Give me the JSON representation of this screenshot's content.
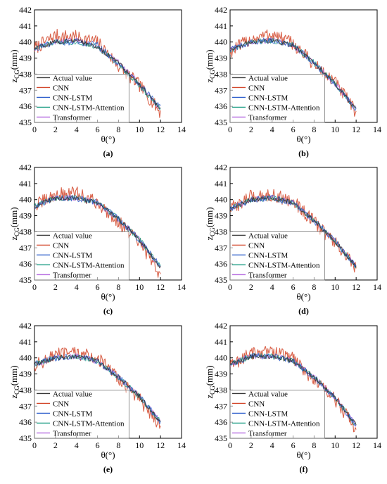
{
  "figure": {
    "xlabel": "θ(°)",
    "ylabel_main": "z",
    "ylabel_sub": "CG",
    "ylabel_unit": "(mm)",
    "series_colors": {
      "Actual value": "#333333",
      "CNN": "#d2462a",
      "CNN-LSTM": "#2f5fcc",
      "CNN-LSTM-Attention": "#1f9e86",
      "Transformer": "#b66be0"
    }
  },
  "chart_data": [
    {
      "panel": "(a)",
      "type": "line",
      "xlim": [
        0,
        14
      ],
      "ylim": [
        435,
        442
      ],
      "xticks": [
        0,
        2,
        4,
        6,
        8,
        10,
        12,
        14
      ],
      "yticks": [
        435,
        436,
        437,
        438,
        439,
        440,
        441,
        442
      ],
      "xlabel": "θ(°)",
      "ylabel": "zCG(mm)",
      "legend": [
        "Actual value",
        "CNN",
        "CNN-LSTM",
        "CNN-LSTM-Attention",
        "Transformer"
      ],
      "legend_position": "bottom-left",
      "annotation_box": {
        "x": 9,
        "y": 438
      },
      "series": [
        {
          "name": "Actual value",
          "x": [
            0,
            2,
            4,
            6,
            8,
            10,
            12
          ],
          "y": [
            439.6,
            440.0,
            440.1,
            439.7,
            438.7,
            437.4,
            435.8
          ]
        },
        {
          "name": "CNN",
          "x": [
            0,
            2,
            4,
            6,
            8,
            10,
            12
          ],
          "y": [
            439.6,
            440.4,
            440.3,
            440.0,
            438.5,
            437.3,
            435.6
          ]
        },
        {
          "name": "CNN-LSTM",
          "x": [
            0,
            2,
            4,
            6,
            8,
            10,
            12
          ],
          "y": [
            439.6,
            440.0,
            440.0,
            439.8,
            438.6,
            437.4,
            435.9
          ]
        },
        {
          "name": "CNN-LSTM-Attention",
          "x": [
            0,
            2,
            4,
            6,
            8,
            10,
            12
          ],
          "y": [
            439.6,
            440.0,
            440.0,
            439.7,
            438.6,
            437.3,
            435.8
          ]
        },
        {
          "name": "Transformer",
          "x": [
            0,
            2,
            4,
            6,
            8,
            10,
            12
          ],
          "y": [
            439.6,
            440.0,
            440.1,
            439.7,
            438.7,
            437.4,
            435.8
          ]
        }
      ]
    },
    {
      "panel": "(b)",
      "type": "line",
      "xlim": [
        0,
        14
      ],
      "ylim": [
        435,
        442
      ],
      "xticks": [
        0,
        2,
        4,
        6,
        8,
        10,
        12,
        14
      ],
      "yticks": [
        435,
        436,
        437,
        438,
        439,
        440,
        441,
        442
      ],
      "xlabel": "θ(°)",
      "ylabel": "zCG(mm)",
      "legend": [
        "Actual value",
        "CNN",
        "CNN-LSTM",
        "CNN-LSTM-Attention",
        "Transformer"
      ],
      "legend_position": "bottom-left",
      "annotation_box": {
        "x": 9,
        "y": 438
      },
      "series": [
        {
          "name": "Actual value",
          "x": [
            0,
            2,
            4,
            6,
            8,
            10,
            12
          ],
          "y": [
            439.5,
            440.0,
            440.1,
            439.8,
            438.7,
            437.4,
            435.8
          ]
        },
        {
          "name": "CNN",
          "x": [
            0,
            2,
            4,
            6,
            8,
            10,
            12
          ],
          "y": [
            439.4,
            440.2,
            440.5,
            439.9,
            438.6,
            437.5,
            435.6
          ]
        },
        {
          "name": "CNN-LSTM",
          "x": [
            0,
            2,
            4,
            6,
            8,
            10,
            12
          ],
          "y": [
            439.5,
            440.0,
            440.1,
            439.8,
            438.7,
            437.4,
            435.8
          ]
        },
        {
          "name": "CNN-LSTM-Attention",
          "x": [
            0,
            2,
            4,
            6,
            8,
            10,
            12
          ],
          "y": [
            439.5,
            440.0,
            440.1,
            439.8,
            438.7,
            437.4,
            435.8
          ]
        },
        {
          "name": "Transformer",
          "x": [
            0,
            2,
            4,
            6,
            8,
            10,
            12
          ],
          "y": [
            439.5,
            440.0,
            440.1,
            439.8,
            438.7,
            437.4,
            435.8
          ]
        }
      ]
    },
    {
      "panel": "(c)",
      "type": "line",
      "xlim": [
        0,
        14
      ],
      "ylim": [
        435,
        442
      ],
      "xticks": [
        0,
        2,
        4,
        6,
        8,
        10,
        12,
        14
      ],
      "yticks": [
        435,
        436,
        437,
        438,
        439,
        440,
        441,
        442
      ],
      "xlabel": "θ(°)",
      "ylabel": "zCG(mm)",
      "legend": [
        "Actual value",
        "CNN",
        "CNN-LSTM",
        "CNN-LSTM-Attention",
        "Transformer"
      ],
      "legend_position": "bottom-left",
      "annotation_box": {
        "x": 9,
        "y": 438
      },
      "series": [
        {
          "name": "Actual value",
          "x": [
            0,
            2,
            4,
            6,
            8,
            10,
            12
          ],
          "y": [
            439.6,
            440.1,
            440.1,
            439.8,
            438.8,
            437.5,
            435.8
          ]
        },
        {
          "name": "CNN",
          "x": [
            0,
            2,
            4,
            6,
            8,
            10,
            12
          ],
          "y": [
            439.6,
            440.3,
            440.4,
            439.8,
            438.6,
            437.3,
            435.3
          ]
        },
        {
          "name": "CNN-LSTM",
          "x": [
            0,
            2,
            4,
            6,
            8,
            10,
            12
          ],
          "y": [
            439.6,
            440.1,
            440.1,
            439.8,
            438.8,
            437.5,
            435.8
          ]
        },
        {
          "name": "CNN-LSTM-Attention",
          "x": [
            0,
            2,
            4,
            6,
            8,
            10,
            12
          ],
          "y": [
            439.6,
            440.1,
            440.1,
            439.8,
            438.8,
            437.5,
            435.8
          ]
        },
        {
          "name": "Transformer",
          "x": [
            0,
            2,
            4,
            6,
            8,
            10,
            12
          ],
          "y": [
            439.6,
            440.1,
            440.1,
            439.8,
            438.8,
            437.5,
            435.8
          ]
        }
      ]
    },
    {
      "panel": "(d)",
      "type": "line",
      "xlim": [
        0,
        14
      ],
      "ylim": [
        435,
        442
      ],
      "xticks": [
        0,
        2,
        4,
        6,
        8,
        10,
        12,
        14
      ],
      "yticks": [
        435,
        436,
        437,
        438,
        439,
        440,
        441,
        442
      ],
      "xlabel": "θ(°)",
      "ylabel": "zCG(mm)",
      "legend": [
        "Actual value",
        "CNN",
        "CNN-LSTM",
        "CNN-LSTM-Attention",
        "Transformer"
      ],
      "legend_position": "bottom-left",
      "annotation_box": {
        "x": 9,
        "y": 438
      },
      "series": [
        {
          "name": "Actual value",
          "x": [
            0,
            2,
            4,
            6,
            8,
            10,
            12
          ],
          "y": [
            439.4,
            440.0,
            440.1,
            439.8,
            438.7,
            437.4,
            435.8
          ]
        },
        {
          "name": "CNN",
          "x": [
            0,
            2,
            4,
            6,
            8,
            10,
            12
          ],
          "y": [
            439.4,
            440.2,
            440.3,
            439.9,
            438.6,
            437.3,
            435.7
          ]
        },
        {
          "name": "CNN-LSTM",
          "x": [
            0,
            2,
            4,
            6,
            8,
            10,
            12
          ],
          "y": [
            439.4,
            440.0,
            440.1,
            439.8,
            438.7,
            437.4,
            435.8
          ]
        },
        {
          "name": "CNN-LSTM-Attention",
          "x": [
            0,
            2,
            4,
            6,
            8,
            10,
            12
          ],
          "y": [
            439.4,
            440.0,
            440.1,
            439.8,
            438.7,
            437.4,
            435.8
          ]
        },
        {
          "name": "Transformer",
          "x": [
            0,
            2,
            4,
            6,
            8,
            10,
            12
          ],
          "y": [
            439.4,
            440.0,
            440.1,
            439.8,
            438.7,
            437.4,
            435.8
          ]
        }
      ]
    },
    {
      "panel": "(e)",
      "type": "line",
      "xlim": [
        0,
        14
      ],
      "ylim": [
        435,
        442
      ],
      "xticks": [
        0,
        2,
        4,
        6,
        8,
        10,
        12,
        14
      ],
      "yticks": [
        435,
        436,
        437,
        438,
        439,
        440,
        441,
        442
      ],
      "xlabel": "θ(°)",
      "ylabel": "zCG(mm)",
      "legend": [
        "Actual value",
        "CNN",
        "CNN-LSTM",
        "CNN-LSTM-Attention",
        "Transformer"
      ],
      "legend_position": "bottom-left",
      "annotation_box": {
        "x": 9,
        "y": 438
      },
      "series": [
        {
          "name": "Actual value",
          "x": [
            0,
            2,
            4,
            6,
            8,
            10,
            12
          ],
          "y": [
            439.6,
            440.0,
            440.1,
            439.8,
            438.8,
            437.6,
            436.0
          ]
        },
        {
          "name": "CNN",
          "x": [
            0,
            2,
            4,
            6,
            8,
            10,
            12
          ],
          "y": [
            439.5,
            440.2,
            440.3,
            440.0,
            438.7,
            437.4,
            435.8
          ]
        },
        {
          "name": "CNN-LSTM",
          "x": [
            0,
            2,
            4,
            6,
            8,
            10,
            12
          ],
          "y": [
            439.6,
            440.0,
            440.1,
            439.8,
            438.8,
            437.6,
            436.0
          ]
        },
        {
          "name": "CNN-LSTM-Attention",
          "x": [
            0,
            2,
            4,
            6,
            8,
            10,
            12
          ],
          "y": [
            439.6,
            440.0,
            440.1,
            439.8,
            438.8,
            437.6,
            436.0
          ]
        },
        {
          "name": "Transformer",
          "x": [
            0,
            2,
            4,
            6,
            8,
            10,
            12
          ],
          "y": [
            439.6,
            440.0,
            440.1,
            439.8,
            438.8,
            437.6,
            436.0
          ]
        }
      ]
    },
    {
      "panel": "(f)",
      "type": "line",
      "xlim": [
        0,
        14
      ],
      "ylim": [
        435,
        442
      ],
      "xticks": [
        0,
        2,
        4,
        6,
        8,
        10,
        12,
        14
      ],
      "yticks": [
        435,
        436,
        437,
        438,
        439,
        440,
        441,
        442
      ],
      "xlabel": "θ(°)",
      "ylabel": "zCG(mm)",
      "legend": [
        "Actual value",
        "CNN",
        "CNN-LSTM",
        "CNN-LSTM-Attention",
        "Transformer"
      ],
      "legend_position": "bottom-left",
      "annotation_box": {
        "x": 9,
        "y": 438
      },
      "series": [
        {
          "name": "Actual value",
          "x": [
            0,
            2,
            4,
            6,
            8,
            10,
            12
          ],
          "y": [
            439.6,
            440.1,
            440.1,
            439.8,
            438.8,
            437.5,
            435.8
          ]
        },
        {
          "name": "CNN",
          "x": [
            0,
            2,
            4,
            6,
            8,
            10,
            12
          ],
          "y": [
            439.5,
            440.3,
            440.4,
            440.0,
            438.6,
            437.4,
            435.6
          ]
        },
        {
          "name": "CNN-LSTM",
          "x": [
            0,
            2,
            4,
            6,
            8,
            10,
            12
          ],
          "y": [
            439.6,
            440.1,
            440.1,
            439.8,
            438.8,
            437.5,
            435.8
          ]
        },
        {
          "name": "CNN-LSTM-Attention",
          "x": [
            0,
            2,
            4,
            6,
            8,
            10,
            12
          ],
          "y": [
            439.6,
            440.1,
            440.1,
            439.8,
            438.8,
            437.5,
            435.8
          ]
        },
        {
          "name": "Transformer",
          "x": [
            0,
            2,
            4,
            6,
            8,
            10,
            12
          ],
          "y": [
            439.6,
            440.1,
            440.1,
            439.8,
            438.8,
            437.5,
            435.8
          ]
        }
      ]
    }
  ]
}
